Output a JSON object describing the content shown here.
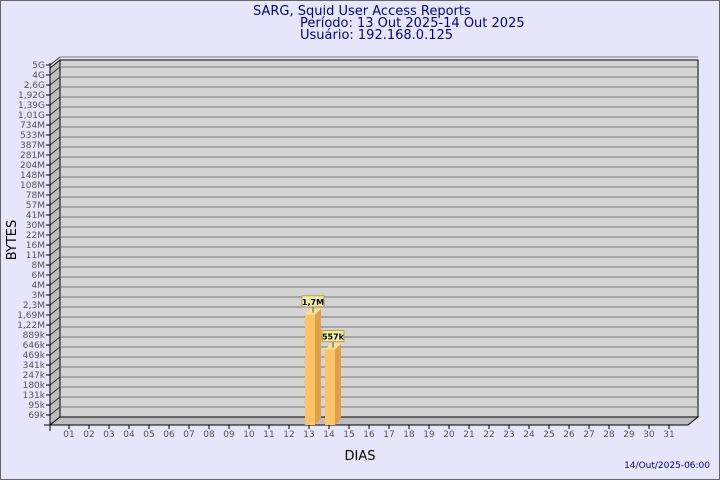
{
  "header": {
    "title": "SARG, Squid User Access Reports",
    "period": "Período: 13 Out 2025-14 Out 2025",
    "user": "Usuário: 192.168.0.125"
  },
  "footer": {
    "timestamp": "14/Out/2025-06:00"
  },
  "colors": {
    "background": "#e6e6fa",
    "plot": "#d3d3d3",
    "bar": "#ffc266",
    "bar_side": "#dfa04a",
    "text": "#00008b"
  },
  "chart_data": {
    "type": "bar",
    "xlabel": "DIAS",
    "ylabel": "BYTES",
    "yscale": "log",
    "grid": true,
    "categories": [
      "01",
      "02",
      "03",
      "04",
      "05",
      "06",
      "07",
      "08",
      "09",
      "10",
      "11",
      "12",
      "13",
      "14",
      "15",
      "16",
      "17",
      "18",
      "19",
      "20",
      "21",
      "22",
      "23",
      "24",
      "25",
      "26",
      "27",
      "28",
      "29",
      "30",
      "31"
    ],
    "yticks": [
      "5G",
      "4G",
      "2,6G",
      "1,92G",
      "1,39G",
      "1,01G",
      "734M",
      "533M",
      "387M",
      "281M",
      "204M",
      "148M",
      "108M",
      "78M",
      "57M",
      "41M",
      "30M",
      "22M",
      "16M",
      "11M",
      "8M",
      "6M",
      "4M",
      "3M",
      "2,3M",
      "1,69M",
      "1,22M",
      "889k",
      "646k",
      "469k",
      "341k",
      "247k",
      "180k",
      "131k",
      "95k",
      "69k"
    ],
    "ytick_values": [
      5000000000,
      4000000000,
      2600000000,
      1920000000,
      1390000000,
      1010000000,
      734000000,
      533000000,
      387000000,
      281000000,
      204000000,
      148000000,
      108000000,
      78000000,
      57000000,
      41000000,
      30000000,
      22000000,
      16000000,
      11000000,
      8000000,
      6000000,
      4000000,
      3000000,
      2300000,
      1690000,
      1220000,
      889000,
      646000,
      469000,
      341000,
      247000,
      180000,
      131000,
      95000,
      69000
    ],
    "bars": [
      {
        "category": "13",
        "value": 1700000,
        "label": "1,7M"
      },
      {
        "category": "14",
        "value": 557000,
        "label": "557k"
      }
    ]
  }
}
